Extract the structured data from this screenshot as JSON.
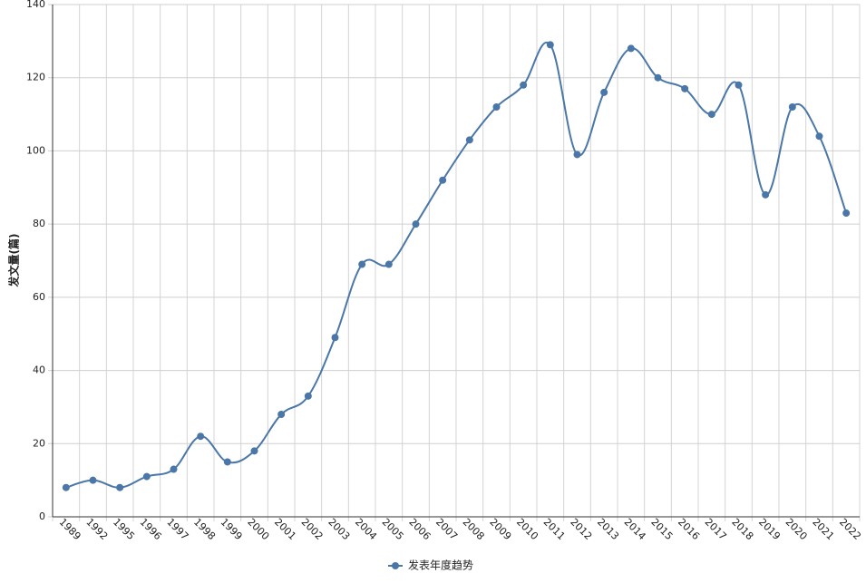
{
  "chart_data": {
    "type": "line",
    "y_label": "发文量(篇)",
    "categories": [
      "1989",
      "1992",
      "1995",
      "1996",
      "1997",
      "1998",
      "1999",
      "2000",
      "2001",
      "2002",
      "2003",
      "2004",
      "2005",
      "2006",
      "2007",
      "2008",
      "2009",
      "2010",
      "2011",
      "2012",
      "2013",
      "2014",
      "2015",
      "2016",
      "2017",
      "2018",
      "2019",
      "2020",
      "2021",
      "2022"
    ],
    "series": [
      {
        "name": "发表年度趋势",
        "color": "#4a77a8",
        "values": [
          8,
          10,
          8,
          11,
          13,
          22,
          15,
          18,
          28,
          33,
          49,
          69,
          69,
          80,
          92,
          103,
          112,
          118,
          129,
          99,
          116,
          128,
          120,
          117,
          110,
          118,
          88,
          112,
          104,
          83
        ]
      }
    ],
    "ylim": [
      0,
      140
    ],
    "yticks": [
      0,
      20,
      40,
      60,
      80,
      100,
      120,
      140
    ],
    "grid": true,
    "legend": "bottom"
  }
}
